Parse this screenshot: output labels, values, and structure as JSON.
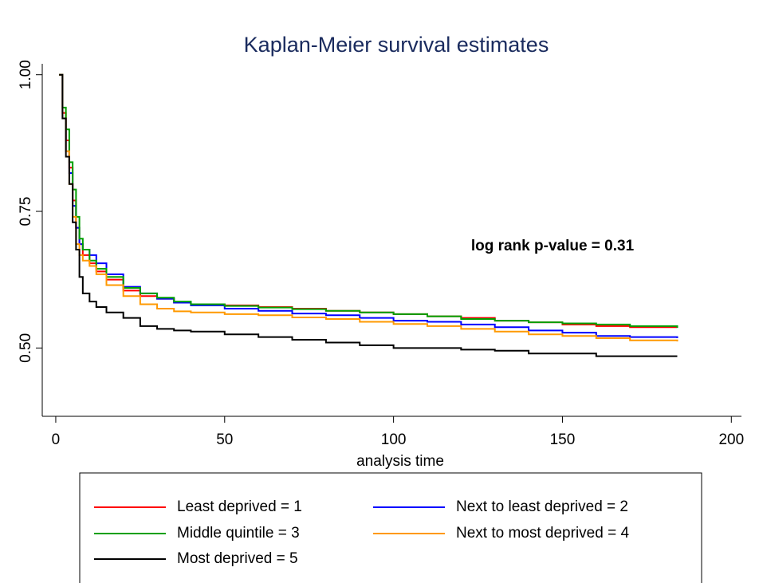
{
  "chart_data": {
    "type": "step",
    "title": "Kaplan-Meier survival estimates",
    "annotation": "log rank p-value = 0.31",
    "x_label": "analysis time",
    "xlim": [
      -4,
      203
    ],
    "ylim": [
      0.375,
      1.02
    ],
    "xticks": [
      0,
      50,
      100,
      150,
      200
    ],
    "yticks": [
      {
        "value": 0.5,
        "label": "0.50"
      },
      {
        "value": 0.75,
        "label": "0.75"
      },
      {
        "value": 1,
        "label": "1.00"
      }
    ],
    "x": [
      1,
      2,
      3,
      4,
      5,
      6,
      7,
      8,
      10,
      12,
      15,
      20,
      25,
      30,
      35,
      40,
      50,
      60,
      70,
      80,
      90,
      100,
      110,
      120,
      130,
      140,
      150,
      160,
      170,
      184
    ],
    "series": [
      {
        "name": "Least deprived = 1",
        "color": "#ff0000",
        "values": [
          1.0,
          0.93,
          0.88,
          0.83,
          0.77,
          0.72,
          0.69,
          0.67,
          0.655,
          0.64,
          0.625,
          0.605,
          0.595,
          0.59,
          0.583,
          0.58,
          0.578,
          0.575,
          0.572,
          0.568,
          0.565,
          0.562,
          0.558,
          0.555,
          0.55,
          0.547,
          0.543,
          0.54,
          0.538,
          0.537
        ]
      },
      {
        "name": "Next to least deprived = 2",
        "color": "#0000ff",
        "values": [
          1.0,
          0.92,
          0.86,
          0.82,
          0.76,
          0.72,
          0.69,
          0.68,
          0.67,
          0.655,
          0.635,
          0.612,
          0.6,
          0.59,
          0.583,
          0.578,
          0.572,
          0.568,
          0.563,
          0.56,
          0.555,
          0.55,
          0.548,
          0.543,
          0.538,
          0.532,
          0.528,
          0.522,
          0.52,
          0.518
        ]
      },
      {
        "name": "Middle quintile = 3",
        "color": "#00a000",
        "values": [
          1.0,
          0.94,
          0.9,
          0.84,
          0.79,
          0.74,
          0.7,
          0.68,
          0.66,
          0.645,
          0.63,
          0.61,
          0.6,
          0.592,
          0.585,
          0.58,
          0.577,
          0.574,
          0.571,
          0.568,
          0.565,
          0.562,
          0.558,
          0.553,
          0.55,
          0.547,
          0.545,
          0.543,
          0.54,
          0.537
        ]
      },
      {
        "name": "Next to most deprived = 4",
        "color": "#ff9900",
        "values": [
          1.0,
          0.92,
          0.86,
          0.8,
          0.74,
          0.69,
          0.67,
          0.66,
          0.65,
          0.635,
          0.615,
          0.595,
          0.58,
          0.572,
          0.567,
          0.565,
          0.562,
          0.56,
          0.556,
          0.553,
          0.548,
          0.544,
          0.54,
          0.535,
          0.53,
          0.525,
          0.522,
          0.518,
          0.514,
          0.512
        ]
      },
      {
        "name": "Most deprived = 5",
        "color": "#000000",
        "values": [
          1.0,
          0.92,
          0.85,
          0.8,
          0.73,
          0.68,
          0.63,
          0.6,
          0.585,
          0.575,
          0.565,
          0.555,
          0.54,
          0.535,
          0.532,
          0.53,
          0.525,
          0.52,
          0.515,
          0.51,
          0.505,
          0.5,
          0.5,
          0.497,
          0.495,
          0.49,
          0.49,
          0.485,
          0.485,
          0.485
        ]
      }
    ]
  }
}
